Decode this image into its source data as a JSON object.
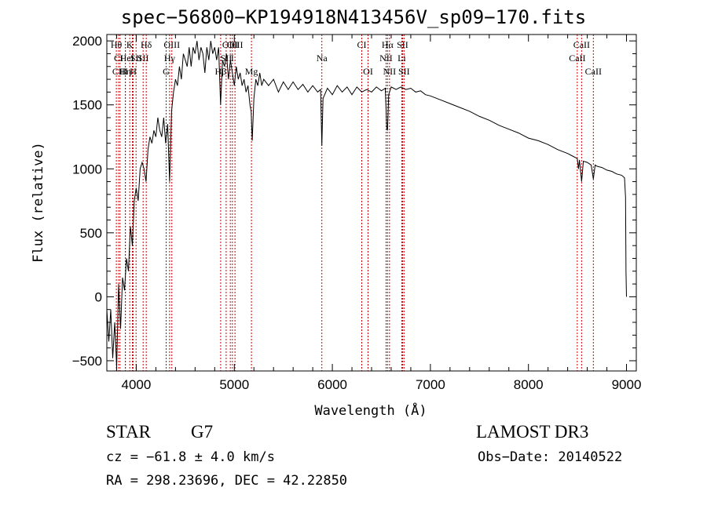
{
  "chart_data": {
    "type": "line",
    "title": "spec−56800−KP194918N413456V_sp09−170.fits",
    "xlabel": "Wavelength (Å)",
    "ylabel": "Flux (relative)",
    "xlim": [
      3700,
      9100
    ],
    "ylim": [
      -580,
      2050
    ],
    "x_ticks": [
      4000,
      5000,
      6000,
      7000,
      8000,
      9000
    ],
    "x_tick_labels": [
      "4000",
      "5000",
      "6000",
      "7000",
      "8000",
      "9000"
    ],
    "y_ticks": [
      -500,
      0,
      500,
      1000,
      1500,
      2000
    ],
    "y_tick_labels": [
      "−500",
      "0",
      "500",
      "1000",
      "1500",
      "2000"
    ],
    "series": [
      {
        "name": "spectrum",
        "points": [
          [
            3700,
            -100
          ],
          [
            3720,
            -350
          ],
          [
            3740,
            -100
          ],
          [
            3760,
            -480
          ],
          [
            3780,
            -200
          ],
          [
            3800,
            -550
          ],
          [
            3820,
            100
          ],
          [
            3840,
            -250
          ],
          [
            3860,
            150
          ],
          [
            3880,
            50
          ],
          [
            3900,
            300
          ],
          [
            3920,
            200
          ],
          [
            3940,
            550
          ],
          [
            3960,
            400
          ],
          [
            3980,
            750
          ],
          [
            4000,
            850
          ],
          [
            4020,
            750
          ],
          [
            4040,
            1000
          ],
          [
            4060,
            1050
          ],
          [
            4080,
            1000
          ],
          [
            4100,
            900
          ],
          [
            4120,
            1150
          ],
          [
            4140,
            1250
          ],
          [
            4160,
            1200
          ],
          [
            4180,
            1300
          ],
          [
            4200,
            1250
          ],
          [
            4220,
            1400
          ],
          [
            4240,
            1300
          ],
          [
            4260,
            1250
          ],
          [
            4280,
            1400
          ],
          [
            4300,
            1200
          ],
          [
            4320,
            1350
          ],
          [
            4340,
            900
          ],
          [
            4360,
            1450
          ],
          [
            4380,
            1600
          ],
          [
            4400,
            1700
          ],
          [
            4420,
            1650
          ],
          [
            4440,
            1800
          ],
          [
            4460,
            1700
          ],
          [
            4480,
            1900
          ],
          [
            4500,
            1850
          ],
          [
            4520,
            1800
          ],
          [
            4540,
            1950
          ],
          [
            4560,
            1800
          ],
          [
            4580,
            1950
          ],
          [
            4600,
            1900
          ],
          [
            4620,
            2000
          ],
          [
            4640,
            1850
          ],
          [
            4660,
            1950
          ],
          [
            4680,
            1900
          ],
          [
            4700,
            1750
          ],
          [
            4720,
            1950
          ],
          [
            4740,
            1850
          ],
          [
            4760,
            2000
          ],
          [
            4780,
            1900
          ],
          [
            4800,
            1950
          ],
          [
            4820,
            1850
          ],
          [
            4840,
            1950
          ],
          [
            4860,
            1500
          ],
          [
            4880,
            1850
          ],
          [
            4900,
            1800
          ],
          [
            4920,
            1900
          ],
          [
            4940,
            1700
          ],
          [
            4960,
            1850
          ],
          [
            4980,
            1750
          ],
          [
            5000,
            1650
          ],
          [
            5020,
            1800
          ],
          [
            5040,
            1700
          ],
          [
            5060,
            1750
          ],
          [
            5080,
            1650
          ],
          [
            5100,
            1700
          ],
          [
            5120,
            1600
          ],
          [
            5140,
            1650
          ],
          [
            5160,
            1500
          ],
          [
            5172,
            1450
          ],
          [
            5183,
            1220
          ],
          [
            5200,
            1550
          ],
          [
            5220,
            1700
          ],
          [
            5240,
            1650
          ],
          [
            5260,
            1750
          ],
          [
            5280,
            1650
          ],
          [
            5300,
            1700
          ],
          [
            5350,
            1650
          ],
          [
            5400,
            1700
          ],
          [
            5450,
            1600
          ],
          [
            5500,
            1680
          ],
          [
            5550,
            1620
          ],
          [
            5600,
            1680
          ],
          [
            5650,
            1620
          ],
          [
            5700,
            1660
          ],
          [
            5750,
            1600
          ],
          [
            5800,
            1650
          ],
          [
            5850,
            1600
          ],
          [
            5880,
            1620
          ],
          [
            5893,
            1180
          ],
          [
            5905,
            1550
          ],
          [
            5950,
            1630
          ],
          [
            6000,
            1580
          ],
          [
            6050,
            1650
          ],
          [
            6100,
            1600
          ],
          [
            6150,
            1640
          ],
          [
            6200,
            1580
          ],
          [
            6250,
            1640
          ],
          [
            6300,
            1600
          ],
          [
            6350,
            1620
          ],
          [
            6400,
            1600
          ],
          [
            6450,
            1640
          ],
          [
            6500,
            1610
          ],
          [
            6540,
            1630
          ],
          [
            6555,
            1320
          ],
          [
            6563,
            1300
          ],
          [
            6575,
            1580
          ],
          [
            6600,
            1640
          ],
          [
            6650,
            1620
          ],
          [
            6700,
            1640
          ],
          [
            6750,
            1620
          ],
          [
            6800,
            1630
          ],
          [
            6850,
            1600
          ],
          [
            6900,
            1610
          ],
          [
            6950,
            1580
          ],
          [
            7000,
            1570
          ],
          [
            7100,
            1540
          ],
          [
            7200,
            1510
          ],
          [
            7300,
            1480
          ],
          [
            7400,
            1450
          ],
          [
            7500,
            1410
          ],
          [
            7600,
            1380
          ],
          [
            7700,
            1340
          ],
          [
            7800,
            1310
          ],
          [
            7900,
            1280
          ],
          [
            8000,
            1240
          ],
          [
            8100,
            1220
          ],
          [
            8200,
            1190
          ],
          [
            8300,
            1150
          ],
          [
            8400,
            1120
          ],
          [
            8450,
            1100
          ],
          [
            8498,
            1080
          ],
          [
            8510,
            1000
          ],
          [
            8520,
            1070
          ],
          [
            8542,
            900
          ],
          [
            8560,
            1060
          ],
          [
            8600,
            1050
          ],
          [
            8640,
            1030
          ],
          [
            8662,
            920
          ],
          [
            8680,
            1030
          ],
          [
            8700,
            1020
          ],
          [
            8750,
            1010
          ],
          [
            8800,
            990
          ],
          [
            8850,
            980
          ],
          [
            8900,
            960
          ],
          [
            8950,
            950
          ],
          [
            8980,
            930
          ],
          [
            8990,
            780
          ],
          [
            8995,
            190
          ],
          [
            9000,
            0
          ]
        ]
      }
    ],
    "line_markers": [
      {
        "label": "Hθ",
        "x": 3797,
        "row": 1
      },
      {
        "label": "CI",
        "x": 3820,
        "row": 2
      },
      {
        "label": "CIII",
        "x": 3835,
        "row": 3
      },
      {
        "label": "He",
        "x": 3889,
        "row": 2
      },
      {
        "label": "Hη",
        "x": 3889,
        "row": 3
      },
      {
        "label": "K",
        "x": 3934,
        "row": 1
      },
      {
        "label": "I",
        "x": 3960,
        "row": 2
      },
      {
        "label": "H",
        "x": 3969,
        "row": 3
      },
      {
        "label": "SII",
        "x": 3998,
        "row": 2
      },
      {
        "label": "Hδ",
        "x": 4102,
        "row": 1
      },
      {
        "label": "SII",
        "x": 4070,
        "row": 2
      },
      {
        "label": "OIII",
        "x": 4363,
        "row": 1
      },
      {
        "label": "Hγ",
        "x": 4340,
        "row": 2
      },
      {
        "label": "G",
        "x": 4305,
        "row": 3
      },
      {
        "label": "OIII",
        "x": 4959,
        "row": 1
      },
      {
        "label": "SII",
        "x": 4917,
        "row": 2
      },
      {
        "label": "Hβ",
        "x": 4861,
        "row": 3
      },
      {
        "label": "OIII",
        "x": 5007,
        "row": 1
      },
      {
        "label": "I",
        "x": 4980,
        "row": 2
      },
      {
        "label": "Mg",
        "x": 5175,
        "row": 3
      },
      {
        "label": "Na",
        "x": 5893,
        "row": 2
      },
      {
        "label": "CI",
        "x": 6300,
        "row": 1
      },
      {
        "label": "OI",
        "x": 6364,
        "row": 3
      },
      {
        "label": "Hα",
        "x": 6563,
        "row": 1
      },
      {
        "label": "SII",
        "x": 6716,
        "row": 1
      },
      {
        "label": "NII",
        "x": 6548,
        "row": 2
      },
      {
        "label": "Li",
        "x": 6708,
        "row": 2
      },
      {
        "label": "NII",
        "x": 6583,
        "row": 3
      },
      {
        "label": "SII",
        "x": 6731,
        "row": 3
      },
      {
        "label": "CaII",
        "x": 8542,
        "row": 1
      },
      {
        "label": "CaII",
        "x": 8498,
        "row": 2
      },
      {
        "label": "CaII",
        "x": 8662,
        "row": 3
      }
    ]
  },
  "info": {
    "object_class": "STAR",
    "subclass": "G7",
    "survey": "LAMOST DR3",
    "cz": "cz = −61.8 ± 4.0 km/s",
    "obs_date": "Obs−Date: 20140522",
    "coords": "RA = 298.23696, DEC =  42.22850"
  },
  "colors": {
    "spectrum": "#000000",
    "marker_line": "#cc0000",
    "axes": "#000000"
  }
}
